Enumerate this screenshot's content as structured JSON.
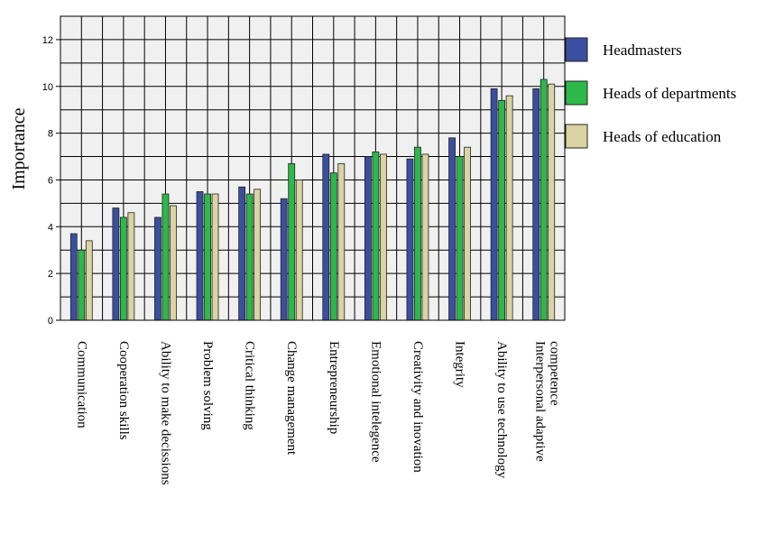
{
  "chart_data": {
    "type": "bar",
    "title": "",
    "xlabel": "",
    "ylabel": "Importance",
    "ylim": [
      0,
      13
    ],
    "yticks": [
      0,
      2,
      4,
      6,
      8,
      10,
      12
    ],
    "grid": true,
    "legend_position": "right",
    "categories": [
      "Communication",
      "Cooperation skills",
      "Ability to make decissions",
      "Problem solving",
      "Critical thinking",
      "Change management",
      "Entrepreneurship",
      "Emotional intelegence",
      "Creativity and inovation",
      "Integrity",
      "Ability to use technology",
      "Interpersonal adaptive competence"
    ],
    "series": [
      {
        "name": "Headmasters",
        "color": "#3a4f9f",
        "values": [
          3.7,
          4.8,
          4.4,
          5.5,
          5.7,
          5.2,
          7.1,
          7.0,
          6.9,
          7.8,
          9.9,
          9.9
        ]
      },
      {
        "name": "Heads of departments",
        "color": "#2db84a",
        "values": [
          3.0,
          4.4,
          5.4,
          5.4,
          5.4,
          6.7,
          6.3,
          7.2,
          7.4,
          7.0,
          9.4,
          10.3
        ]
      },
      {
        "name": "Heads of education",
        "color": "#d9d4a3",
        "values": [
          3.4,
          4.6,
          4.9,
          5.4,
          5.6,
          6.0,
          6.7,
          7.1,
          7.1,
          7.4,
          9.6,
          10.1
        ]
      }
    ]
  }
}
